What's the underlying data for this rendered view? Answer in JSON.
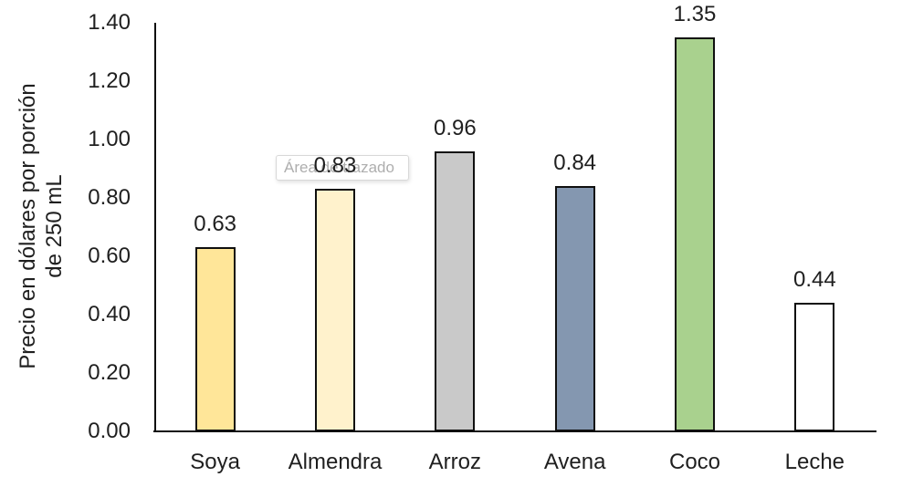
{
  "tooltip": {
    "text": "Área de trazado"
  },
  "chart_data": {
    "type": "bar",
    "title": "",
    "xlabel": "",
    "ylabel": "Precio en dólares por porción de 250 mL",
    "ylabel_lines": [
      "Precio en dólares por porción",
      "de 250 mL"
    ],
    "categories": [
      "Soya",
      "Almendra",
      "Arroz",
      "Avena",
      "Coco",
      "Leche"
    ],
    "values": [
      0.63,
      0.83,
      0.96,
      0.84,
      1.35,
      0.44
    ],
    "data_labels": [
      "0.63",
      "0.83",
      "0.96",
      "0.84",
      "1.35",
      "0.44"
    ],
    "bar_colors": [
      "#FFE699",
      "#FFF2CC",
      "#C9C9C9",
      "#8497B0",
      "#A9D18E",
      "#FFFFFF"
    ],
    "bar_border_color": "#0F0F0F",
    "y_ticks": [
      "0.00",
      "0.20",
      "0.40",
      "0.60",
      "0.80",
      "1.00",
      "1.20",
      "1.40"
    ],
    "ylim": [
      0,
      1.4
    ],
    "grid": false,
    "legend": false,
    "axis_color": "#0F0F0F",
    "text_color": "#1F1F1F",
    "background_color": "#FFFFFF"
  }
}
